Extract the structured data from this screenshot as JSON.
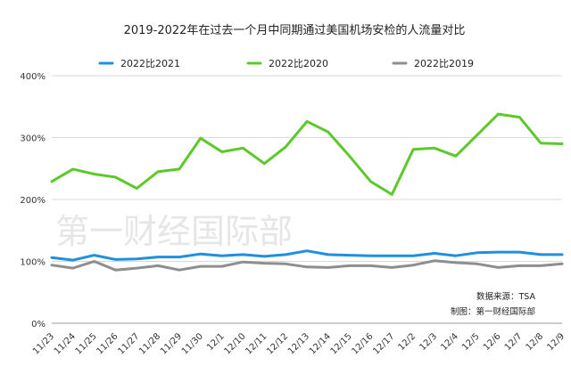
{
  "chart_data": {
    "type": "line",
    "title": "2019-2022年在过去一个月中同期通过美国机场安检的人流量对比",
    "categories": [
      "11/23",
      "11/24",
      "11/25",
      "11/26",
      "11/27",
      "11/28",
      "11/29",
      "11/30",
      "12/1",
      "12/10",
      "12/11",
      "12/12",
      "12/13",
      "12/14",
      "12/15",
      "12/16",
      "12/17",
      "12/2",
      "12/3",
      "12/4",
      "12/5",
      "12/6",
      "12/7",
      "12/8",
      "12/9"
    ],
    "series": [
      {
        "name": "2022比2021",
        "color": "#1f8fe0",
        "values": [
          106,
          102,
          110,
          103,
          104,
          107,
          107,
          112,
          109,
          111,
          108,
          111,
          117,
          111,
          110,
          109,
          109,
          109,
          113,
          109,
          114,
          115,
          115,
          111,
          111
        ]
      },
      {
        "name": "2022比2020",
        "color": "#5cc92b",
        "values": [
          229,
          249,
          241,
          236,
          218,
          245,
          249,
          299,
          277,
          283,
          258,
          285,
          326,
          309,
          270,
          229,
          208,
          281,
          283,
          270,
          304,
          338,
          333,
          291,
          290
        ]
      },
      {
        "name": "2022比2019",
        "color": "#8e8e8e",
        "values": [
          94,
          89,
          100,
          86,
          89,
          93,
          86,
          92,
          92,
          99,
          97,
          96,
          91,
          90,
          93,
          93,
          90,
          94,
          101,
          98,
          96,
          90,
          93,
          93,
          96
        ]
      }
    ],
    "yticks": [
      "0%",
      "100%",
      "200%",
      "300%",
      "400%"
    ],
    "ylim": [
      0,
      400
    ],
    "grid": true,
    "legend": "top",
    "watermark": "第一财经国际部",
    "notes": [
      "数据来源：TSA",
      "制图：第一财经国际部"
    ]
  }
}
